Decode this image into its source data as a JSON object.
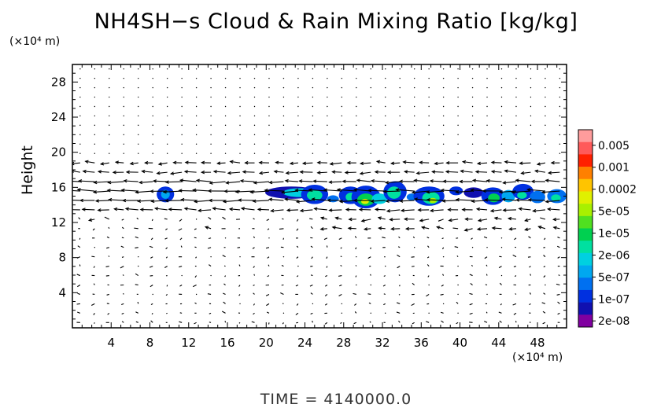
{
  "chart_data": {
    "type": "heatmap",
    "title": "NH4SH−s Cloud & Rain Mixing Ratio [kg/kg]",
    "ylabel": "Height",
    "x_unit": "(×10⁴ m)",
    "y_unit": "(×10⁴ m)",
    "time_label": "TIME  =  4140000.0",
    "xlim": [
      0,
      51
    ],
    "ylim": [
      0,
      30
    ],
    "x_ticks": [
      4,
      8,
      12,
      16,
      20,
      24,
      28,
      32,
      36,
      40,
      44,
      48
    ],
    "y_ticks": [
      4,
      8,
      12,
      16,
      20,
      24,
      28
    ],
    "colorbar": {
      "labels": [
        "0.005",
        "0.001",
        "0.0002",
        "5e-05",
        "1e-05",
        "2e-06",
        "5e-07",
        "1e-07",
        "2e-08"
      ],
      "colors": [
        "#ff9c9c",
        "#ff5a5a",
        "#ff2000",
        "#ff8000",
        "#ffc400",
        "#e0f000",
        "#a8f000",
        "#50e020",
        "#00d050",
        "#00e0a0",
        "#00d0e0",
        "#00a8f0",
        "#0070f0",
        "#0030e0",
        "#1010b0",
        "#8000a0"
      ]
    },
    "cloud_blobs": [
      {
        "x": 9.6,
        "y": 15.2,
        "rx": 0.9,
        "ry": 0.9,
        "level": 13
      },
      {
        "x": 9.6,
        "y": 15.2,
        "rx": 0.45,
        "ry": 0.5,
        "level": 11
      },
      {
        "x": 22.6,
        "y": 15.4,
        "rx": 2.7,
        "ry": 0.7,
        "level": 14
      },
      {
        "x": 23.5,
        "y": 15.4,
        "rx": 1.8,
        "ry": 0.5,
        "level": 10
      },
      {
        "x": 25.0,
        "y": 15.2,
        "rx": 1.4,
        "ry": 1.1,
        "level": 13
      },
      {
        "x": 25.0,
        "y": 15.1,
        "rx": 0.8,
        "ry": 0.6,
        "level": 9
      },
      {
        "x": 26.9,
        "y": 14.7,
        "rx": 0.6,
        "ry": 0.4,
        "level": 12
      },
      {
        "x": 28.7,
        "y": 15.1,
        "rx": 1.2,
        "ry": 1.0,
        "level": 13
      },
      {
        "x": 28.8,
        "y": 14.9,
        "rx": 0.6,
        "ry": 0.5,
        "level": 9
      },
      {
        "x": 30.3,
        "y": 14.9,
        "rx": 1.5,
        "ry": 1.3,
        "level": 13
      },
      {
        "x": 30.3,
        "y": 14.6,
        "rx": 0.9,
        "ry": 0.7,
        "level": 8
      },
      {
        "x": 30.2,
        "y": 14.4,
        "rx": 0.4,
        "ry": 0.3,
        "level": 5
      },
      {
        "x": 31.7,
        "y": 14.7,
        "rx": 0.8,
        "ry": 0.6,
        "level": 10
      },
      {
        "x": 33.3,
        "y": 15.5,
        "rx": 1.2,
        "ry": 1.2,
        "level": 13
      },
      {
        "x": 33.2,
        "y": 15.4,
        "rx": 0.7,
        "ry": 0.7,
        "level": 9
      },
      {
        "x": 35.0,
        "y": 14.9,
        "rx": 0.5,
        "ry": 0.4,
        "level": 12
      },
      {
        "x": 36.8,
        "y": 15.0,
        "rx": 1.6,
        "ry": 1.1,
        "level": 13
      },
      {
        "x": 37.0,
        "y": 14.8,
        "rx": 0.9,
        "ry": 0.7,
        "level": 9
      },
      {
        "x": 37.2,
        "y": 14.5,
        "rx": 0.4,
        "ry": 0.3,
        "level": 6
      },
      {
        "x": 39.6,
        "y": 15.6,
        "rx": 0.7,
        "ry": 0.5,
        "level": 13
      },
      {
        "x": 41.4,
        "y": 15.4,
        "rx": 1.0,
        "ry": 0.6,
        "level": 14
      },
      {
        "x": 43.4,
        "y": 15.0,
        "rx": 1.2,
        "ry": 1.0,
        "level": 13
      },
      {
        "x": 43.5,
        "y": 14.8,
        "rx": 0.6,
        "ry": 0.5,
        "level": 8
      },
      {
        "x": 45.0,
        "y": 15.0,
        "rx": 0.7,
        "ry": 0.7,
        "level": 11
      },
      {
        "x": 46.5,
        "y": 15.5,
        "rx": 1.1,
        "ry": 0.9,
        "level": 13
      },
      {
        "x": 46.4,
        "y": 15.1,
        "rx": 0.5,
        "ry": 0.4,
        "level": 9
      },
      {
        "x": 48.0,
        "y": 14.9,
        "rx": 0.8,
        "ry": 0.7,
        "level": 12
      },
      {
        "x": 50.0,
        "y": 15.0,
        "rx": 1.0,
        "ry": 0.8,
        "level": 12
      },
      {
        "x": 49.9,
        "y": 14.8,
        "rx": 0.5,
        "ry": 0.4,
        "level": 9
      }
    ]
  }
}
